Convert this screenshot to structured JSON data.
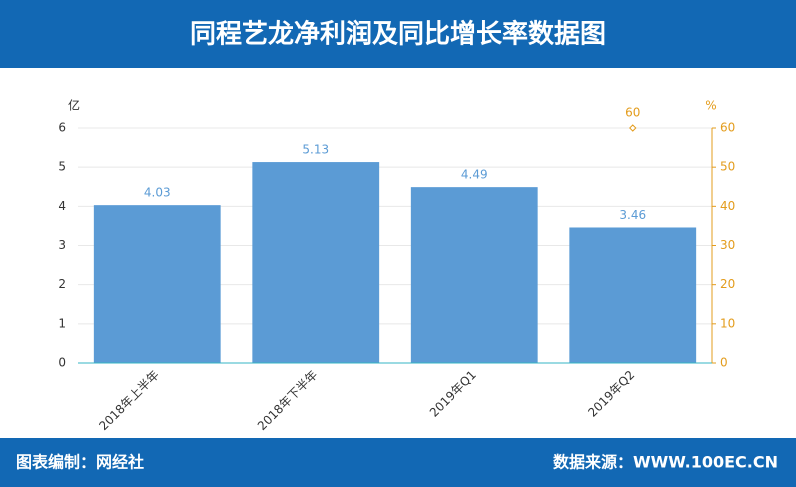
{
  "header": {
    "title": "同程艺龙净利润及同比增长率数据图"
  },
  "chart_data": {
    "type": "bar",
    "y_unit": "亿",
    "y2_unit": "%",
    "categories": [
      "2018年上半年",
      "2018年下半年",
      "2019年Q1",
      "2019年Q2"
    ],
    "series": [
      {
        "color": "#5b9bd5",
        "values": [
          4.03,
          5.13,
          4.49,
          3.46
        ]
      },
      {
        "type": "scatter",
        "axis": "y2",
        "color": "#e39c1c",
        "values": [
          null,
          null,
          null,
          60
        ]
      }
    ],
    "ylim": [
      0,
      6
    ],
    "yticks": [
      0,
      1,
      2,
      3,
      4,
      5,
      6
    ],
    "y2lim": [
      0,
      60
    ],
    "y2ticks": [
      0,
      10,
      20,
      30,
      40,
      50,
      60
    ],
    "grid": true
  },
  "footer": {
    "left": "图表编制：网经社",
    "right": "数据来源：WWW.100EC.CN"
  }
}
